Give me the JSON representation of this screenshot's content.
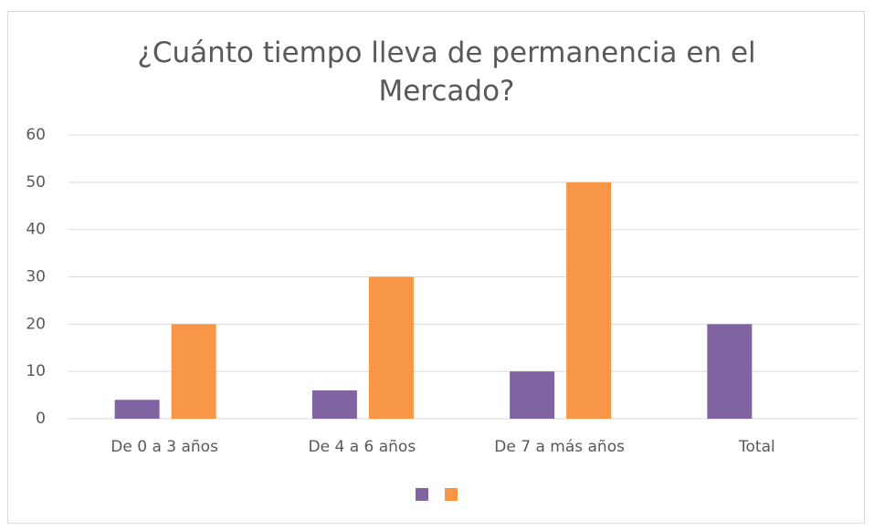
{
  "chart_data": {
    "type": "bar",
    "title": "¿Cuánto tiempo lleva de permanencia en el Mercado?",
    "categories": [
      "De 0 a 3 años",
      "De 4 a 6 años",
      "De 7 a más años",
      "Total"
    ],
    "series": [
      {
        "color": "#8064a2",
        "values": [
          4,
          6,
          10,
          20
        ]
      },
      {
        "color": "#f79646",
        "values": [
          20,
          30,
          50,
          null
        ]
      }
    ],
    "ylim": [
      0,
      60
    ],
    "yticks": [
      0,
      10,
      20,
      30,
      40,
      50,
      60
    ],
    "grid": true,
    "legend": "bottom"
  }
}
